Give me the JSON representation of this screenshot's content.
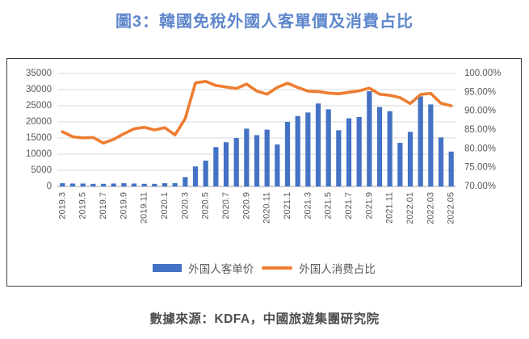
{
  "header": {
    "title": "圖3：韓國免稅外國人客單價及消費占比"
  },
  "footer": {
    "text": "數據來源：KDFA，中國旅遊集團研究院"
  },
  "colors": {
    "title_blue": "#5e87cb",
    "bar_blue": "#4472C4",
    "line_orange": "#ED7D31",
    "grid_gray": "#D9D9D9",
    "axis_text_gray": "#595959",
    "frame_border": "#3f3f3f"
  },
  "legend": {
    "items": [
      {
        "label": "外国人客单价",
        "swatch": "bar",
        "color": "#4472C4"
      },
      {
        "label": "外国人消费占比",
        "swatch": "line",
        "color": "#ED7D31"
      }
    ]
  },
  "chart_data": {
    "type": "bar",
    "combo": "bar+line",
    "title": "",
    "xlabel": "",
    "ylabel": "",
    "grid": true,
    "legend_position": "bottom",
    "categories": [
      "2019.3",
      "2019.4",
      "2019.5",
      "2019.6",
      "2019.7",
      "2019.8",
      "2019.9",
      "2019.10",
      "2019.11",
      "2019.12",
      "2020.1",
      "2020.2",
      "2020.3",
      "2020.4",
      "2020.5",
      "2020.6",
      "2020.7",
      "2020.8",
      "2020.9",
      "2020.10",
      "2020.11",
      "2020.12",
      "2021.1",
      "2021.2",
      "2021.3",
      "2021.4",
      "2021.5",
      "2021.6",
      "2021.7",
      "2021.8",
      "2021.9",
      "2021.10",
      "2021.11",
      "2021.12",
      "2022.01",
      "2022.02",
      "2022.03",
      "2022.04",
      "2022.05"
    ],
    "x_tick_every": 2,
    "series": [
      {
        "name": "外国人客单价",
        "type": "bar",
        "axis": "left",
        "color": "#4472C4",
        "values": [
          1000,
          900,
          900,
          800,
          800,
          900,
          1000,
          900,
          800,
          800,
          1000,
          1000,
          2900,
          6200,
          8000,
          12200,
          13700,
          15000,
          17900,
          15900,
          17600,
          13000,
          20000,
          21800,
          22900,
          25700,
          23900,
          17400,
          21100,
          21500,
          29500,
          24600,
          23300,
          13500,
          16900,
          27900,
          25400,
          15200,
          10800
        ]
      },
      {
        "name": "外国人消费占比",
        "type": "line",
        "axis": "right",
        "color": "#ED7D31",
        "values": [
          84.5,
          83.2,
          82.9,
          83.0,
          81.5,
          82.5,
          84.0,
          85.3,
          85.7,
          85.0,
          85.6,
          83.7,
          88.0,
          97.5,
          97.9,
          96.8,
          96.4,
          96.0,
          97.2,
          95.3,
          94.5,
          96.3,
          97.4,
          96.3,
          95.3,
          95.2,
          94.8,
          94.6,
          95.0,
          95.4,
          96.1,
          94.5,
          94.2,
          93.6,
          92.0,
          94.4,
          94.7,
          92.1,
          91.4
        ]
      }
    ],
    "left_axis": {
      "min": 0,
      "max": 35000,
      "step": 5000,
      "tick_labels": [
        "0",
        "5000",
        "10000",
        "15000",
        "20000",
        "25000",
        "30000",
        "35000"
      ]
    },
    "right_axis": {
      "min": 70,
      "max": 100,
      "step": 5,
      "tick_labels": [
        "70.00%",
        "75.00%",
        "80.00%",
        "85.00%",
        "90.00%",
        "95.00%",
        "100.00%"
      ]
    }
  }
}
